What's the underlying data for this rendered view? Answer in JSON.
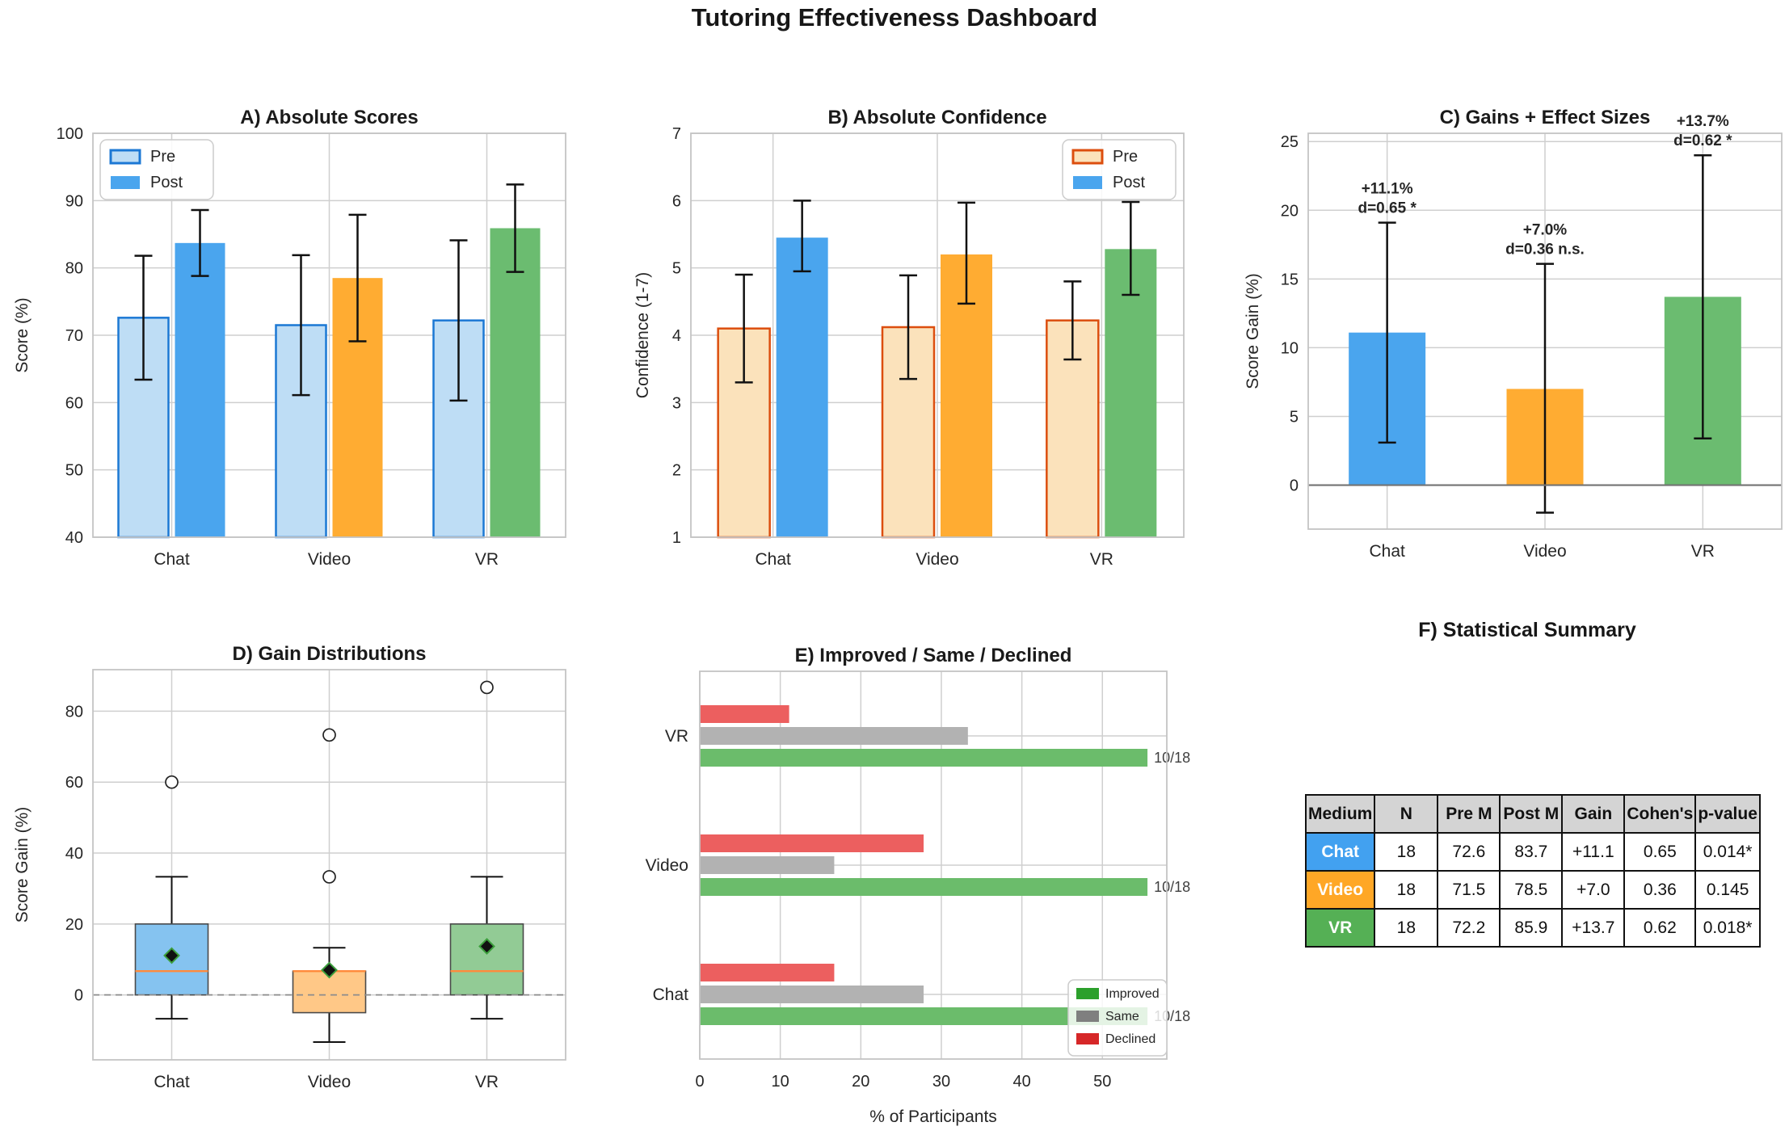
{
  "dashboard": {
    "title": "Tutoring Effectiveness Dashboard"
  },
  "style": {
    "grid_color": "#CFCFCF",
    "spine_color": "#C4C4C4",
    "tick_color": "#262626",
    "title_color": "#1a1a1a",
    "error_bar_color": "#111111",
    "zero_line_color": "#737373",
    "dashed_zero_color": "#8c8c8c"
  },
  "chart_data": [
    {
      "id": "a",
      "type": "bar",
      "title": "A) Absolute Scores",
      "ylabel": "Score (%)",
      "categories": [
        "Chat",
        "Video",
        "VR"
      ],
      "ylim": [
        40,
        100
      ],
      "yticks": [
        40,
        50,
        60,
        70,
        80,
        90,
        100
      ],
      "legend": {
        "labels": [
          "Pre",
          "Post"
        ],
        "position": "top-left"
      },
      "series": [
        {
          "name": "Pre",
          "style": "outline",
          "fill": "#BEDDF5",
          "edge": "#1C78D4",
          "values": [
            72.6,
            71.5,
            72.2
          ],
          "err_lo": [
            63.4,
            61.1,
            60.3
          ],
          "err_hi": [
            81.8,
            81.9,
            84.1
          ]
        },
        {
          "name": "Post",
          "style": "solid",
          "colors": [
            "#4AA5EE",
            "#FFAC32",
            "#6BBC70"
          ],
          "values": [
            83.7,
            78.5,
            85.9
          ],
          "err_lo": [
            78.8,
            69.1,
            79.4
          ],
          "err_hi": [
            88.6,
            87.9,
            92.4
          ]
        }
      ]
    },
    {
      "id": "b",
      "type": "bar",
      "title": "B) Absolute Confidence",
      "ylabel": "Confidence (1-7)",
      "categories": [
        "Chat",
        "Video",
        "VR"
      ],
      "ylim": [
        1,
        7
      ],
      "yticks": [
        1,
        2,
        3,
        4,
        5,
        6,
        7
      ],
      "legend": {
        "labels": [
          "Pre",
          "Post"
        ],
        "position": "top-right"
      },
      "series": [
        {
          "name": "Pre",
          "style": "outline",
          "fill": "#FBE2BB",
          "edge": "#DC4E0E",
          "values": [
            4.1,
            4.12,
            4.22
          ],
          "err_lo": [
            3.3,
            3.35,
            3.64
          ],
          "err_hi": [
            4.9,
            4.89,
            4.8
          ]
        },
        {
          "name": "Post",
          "style": "solid",
          "colors": [
            "#4AA5EE",
            "#FFAC32",
            "#6BBC70"
          ],
          "values": [
            5.45,
            5.2,
            5.28
          ],
          "err_lo": [
            4.95,
            4.47,
            4.6
          ],
          "err_hi": [
            6.0,
            5.97,
            5.98
          ]
        }
      ]
    },
    {
      "id": "c",
      "type": "bar-gain",
      "title": "C) Gains + Effect Sizes",
      "ylabel": "Score Gain (%)",
      "categories": [
        "Chat",
        "Video",
        "VR"
      ],
      "ylim": [
        -3.2,
        25.6
      ],
      "yticks": [
        0,
        5,
        10,
        15,
        20,
        25
      ],
      "colors": [
        "#4AA5EE",
        "#FFAC32",
        "#6BBC70"
      ],
      "values": [
        11.1,
        7.0,
        13.7
      ],
      "err_lo": [
        3.1,
        -2.0,
        3.4
      ],
      "err_hi": [
        19.1,
        16.1,
        24.0
      ],
      "annotations": [
        [
          "+11.1%",
          "d=0.65 *"
        ],
        [
          "+7.0%",
          "d=0.36 n.s."
        ],
        [
          "+13.7%",
          "d=0.62 *"
        ]
      ]
    },
    {
      "id": "d",
      "type": "box",
      "title": "D) Gain Distributions",
      "ylabel": "Score Gain (%)",
      "categories": [
        "Chat",
        "Video",
        "VR"
      ],
      "ylim": [
        -18.3,
        91.7
      ],
      "yticks": [
        0,
        20,
        40,
        60,
        80
      ],
      "median_color": "#FF8A3C",
      "mean_marker": {
        "fill": "#111111",
        "edge": "#3C9E3C"
      },
      "boxes": [
        {
          "label": "Chat",
          "fill": "#85C3F0",
          "whislo": -6.7,
          "q1": 0,
          "med": 6.7,
          "q3": 20,
          "whishi": 33.3,
          "mean": 11.1,
          "outliers": [
            60
          ]
        },
        {
          "label": "Video",
          "fill": "#FFC887",
          "whislo": -13.3,
          "q1": -5,
          "med": 6.7,
          "q3": 6.7,
          "whishi": 13.3,
          "mean": 7.0,
          "outliers": [
            33.3,
            73.3
          ]
        },
        {
          "label": "VR",
          "fill": "#92CB95",
          "whislo": -6.7,
          "q1": 0,
          "med": 6.7,
          "q3": 20,
          "whishi": 33.3,
          "mean": 13.7,
          "outliers": [
            86.7
          ]
        }
      ]
    },
    {
      "id": "e",
      "type": "barh",
      "title": "E) Improved / Same / Declined",
      "xlabel": "% of Participants",
      "xlim": [
        0,
        58
      ],
      "xticks": [
        0,
        10,
        20,
        30,
        40,
        50
      ],
      "categories": [
        "Chat",
        "Video",
        "VR"
      ],
      "series": [
        {
          "name": "Improved",
          "color": "#6BBC6B",
          "legend_color": "#2CA02C",
          "values": [
            55.6,
            55.6,
            55.6
          ]
        },
        {
          "name": "Same",
          "color": "#B2B2B2",
          "legend_color": "#7F7F7F",
          "values": [
            27.8,
            16.7,
            33.3
          ]
        },
        {
          "name": "Declined",
          "color": "#EC5F5F",
          "legend_color": "#D62728",
          "values": [
            16.7,
            27.8,
            11.1
          ]
        }
      ],
      "bar_labels": [
        "10/18",
        "10/18",
        "10/18"
      ]
    },
    {
      "id": "f",
      "type": "table",
      "title": "F) Statistical Summary",
      "headers": [
        "Medium",
        "N",
        "Pre M",
        "Post M",
        "Gain",
        "Cohen's",
        "p-value"
      ],
      "rows": [
        {
          "medium": "Chat",
          "color": "#42A1F0",
          "cells": [
            "18",
            "72.6",
            "83.7",
            "+11.1",
            "0.65",
            "0.014*"
          ]
        },
        {
          "medium": "Video",
          "color": "#FFA726",
          "cells": [
            "18",
            "71.5",
            "78.5",
            "+7.0",
            "0.36",
            "0.145"
          ]
        },
        {
          "medium": "VR",
          "color": "#55B055",
          "cells": [
            "18",
            "72.2",
            "85.9",
            "+13.7",
            "0.62",
            "0.018*"
          ]
        }
      ]
    }
  ]
}
